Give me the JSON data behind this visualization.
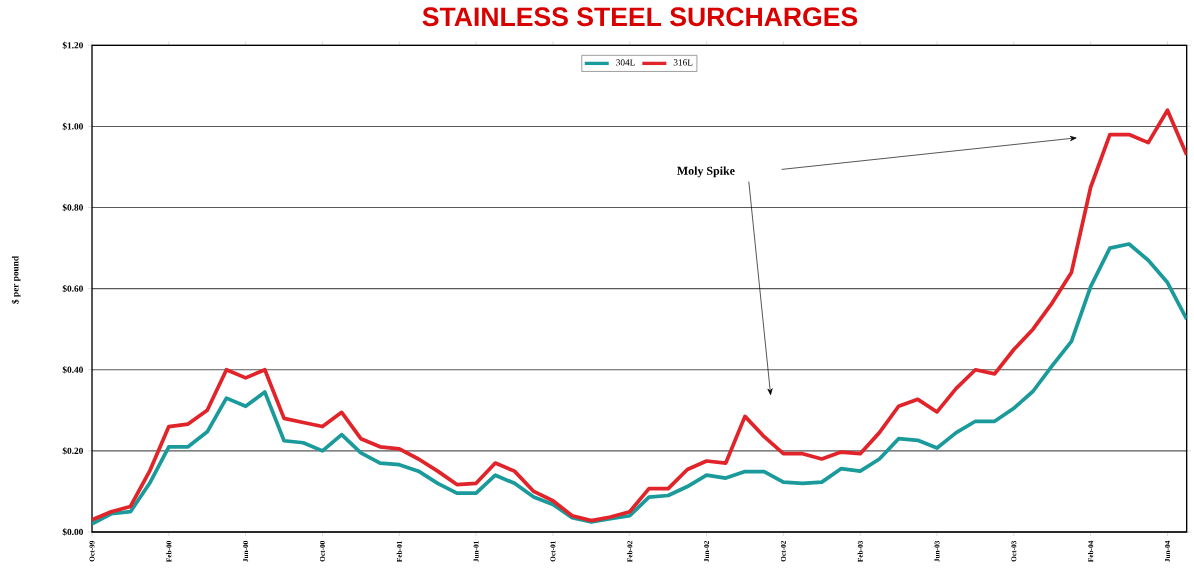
{
  "chart_data": {
    "type": "line",
    "title": "STAINLESS STEEL SURCHARGES",
    "ylabel": "$ per pound",
    "annotations": [
      "Moly Spike"
    ],
    "x": [
      "1999-10",
      "1999-11",
      "1999-12",
      "2000-01",
      "2000-02",
      "2000-03",
      "2000-04",
      "2000-05",
      "2000-06",
      "2000-07",
      "2000-08",
      "2000-09",
      "2000-10",
      "2000-11",
      "2000-12",
      "2001-01",
      "2001-02",
      "2001-03",
      "2001-04",
      "2001-05",
      "2001-06",
      "2001-07",
      "2001-08",
      "2001-09",
      "2001-10",
      "2001-11",
      "2001-12",
      "2002-01",
      "2002-02",
      "2002-03",
      "2002-04",
      "2002-05",
      "2002-06",
      "2002-07",
      "2002-08",
      "2002-09",
      "2002-10",
      "2002-11",
      "2002-12",
      "2003-01",
      "2003-02",
      "2003-03",
      "2003-04",
      "2003-05",
      "2003-06",
      "2003-07",
      "2003-08",
      "2003-09",
      "2003-10",
      "2003-11",
      "2003-12",
      "2004-01",
      "2004-02",
      "2004-03",
      "2004-04",
      "2004-05",
      "2004-06",
      "2004-07"
    ],
    "series": [
      {
        "name": "304L",
        "color": "#1a9a9a",
        "values": [
          0.02,
          0.045,
          0.05,
          0.12,
          0.21,
          0.21,
          0.247,
          0.33,
          0.31,
          0.345,
          0.225,
          0.22,
          0.2,
          0.24,
          0.195,
          0.17,
          0.166,
          0.15,
          0.12,
          0.096,
          0.096,
          0.14,
          0.12,
          0.086,
          0.068,
          0.035,
          0.025,
          0.033,
          0.04,
          0.086,
          0.09,
          0.112,
          0.14,
          0.133,
          0.149,
          0.149,
          0.123,
          0.12,
          0.123,
          0.156,
          0.15,
          0.18,
          0.23,
          0.226,
          0.207,
          0.245,
          0.273,
          0.273,
          0.305,
          0.347,
          0.41,
          0.47,
          0.605,
          0.7,
          0.71,
          0.67,
          0.615,
          0.525
        ]
      },
      {
        "name": "316L",
        "color": "#e0242a",
        "values": [
          0.03,
          0.05,
          0.063,
          0.15,
          0.26,
          0.266,
          0.3,
          0.4,
          0.38,
          0.4,
          0.28,
          0.27,
          0.26,
          0.295,
          0.23,
          0.21,
          0.205,
          0.18,
          0.15,
          0.117,
          0.12,
          0.17,
          0.15,
          0.1,
          0.077,
          0.04,
          0.028,
          0.037,
          0.05,
          0.107,
          0.107,
          0.154,
          0.175,
          0.17,
          0.285,
          0.235,
          0.193,
          0.193,
          0.18,
          0.197,
          0.193,
          0.245,
          0.31,
          0.327,
          0.296,
          0.354,
          0.4,
          0.39,
          0.45,
          0.5,
          0.565,
          0.64,
          0.85,
          0.98,
          0.98,
          0.96,
          1.04,
          0.93
        ]
      }
    ],
    "xlim": [
      "1999-10",
      "2004-07"
    ],
    "xticks": [
      {
        "value": "1999-10",
        "label": "Oct-99"
      },
      {
        "value": "2000-02",
        "label": "Feb-00"
      },
      {
        "value": "2000-06",
        "label": "Jun-00"
      },
      {
        "value": "2000-10",
        "label": "Oct-00"
      },
      {
        "value": "2001-02",
        "label": "Feb-01"
      },
      {
        "value": "2001-06",
        "label": "Jun-01"
      },
      {
        "value": "2001-10",
        "label": "Oct-01"
      },
      {
        "value": "2002-02",
        "label": "Feb-02"
      },
      {
        "value": "2002-06",
        "label": "Jun-02"
      },
      {
        "value": "2002-10",
        "label": "Oct-02"
      },
      {
        "value": "2003-02",
        "label": "Feb-03"
      },
      {
        "value": "2003-06",
        "label": "Jun-03"
      },
      {
        "value": "2003-10",
        "label": "Oct-03"
      },
      {
        "value": "2004-02",
        "label": "Feb-04"
      },
      {
        "value": "2004-06",
        "label": "Jun-04"
      }
    ],
    "ylim": [
      0,
      1.2
    ],
    "yticks": [
      {
        "value": 0,
        "label": "$0.00"
      },
      {
        "value": 0.2,
        "label": "$0.20"
      },
      {
        "value": 0.4,
        "label": "$0.40"
      },
      {
        "value": 0.6,
        "label": "$0.60"
      },
      {
        "value": 0.8,
        "label": "$0.80"
      },
      {
        "value": 1.0,
        "label": "$1.00"
      },
      {
        "value": 1.2,
        "label": "$1.20"
      }
    ],
    "grid": "y",
    "legend": "top",
    "line_style": "solid"
  }
}
